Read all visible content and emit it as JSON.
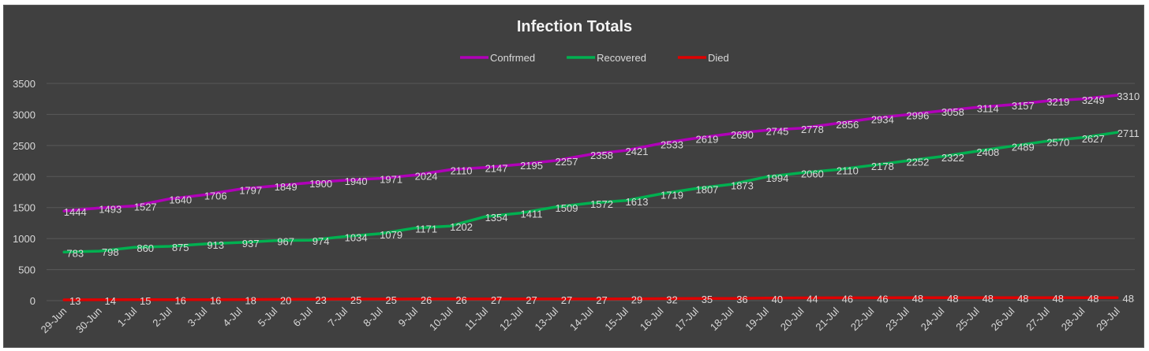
{
  "chart_data": {
    "type": "line",
    "title": "Infection Totals",
    "xlabel": "",
    "ylabel": "",
    "ylim": [
      0,
      3500
    ],
    "yticks": [
      0,
      500,
      1000,
      1500,
      2000,
      2500,
      3000,
      3500
    ],
    "grid": true,
    "legend_position": "top-center",
    "categories": [
      "29-Jun",
      "30-Jun",
      "1-Jul",
      "2-Jul",
      "3-Jul",
      "4-Jul",
      "5-Jul",
      "6-Jul",
      "7-Jul",
      "8-Jul",
      "9-Jul",
      "10-Jul",
      "11-Jul",
      "12-Jul",
      "13-Jul",
      "14-Jul",
      "15-Jul",
      "16-Jul",
      "17-Jul",
      "18-Jul",
      "19-Jul",
      "20-Jul",
      "21-Jul",
      "22-Jul",
      "23-Jul",
      "24-Jul",
      "25-Jul",
      "26-Jul",
      "27-Jul",
      "28-Jul",
      "29-Jul"
    ],
    "series": [
      {
        "name": "Confrmed",
        "color": "#b000b8",
        "values": [
          1444,
          1493,
          1527,
          1640,
          1706,
          1797,
          1849,
          1900,
          1940,
          1971,
          2024,
          2110,
          2147,
          2195,
          2257,
          2358,
          2421,
          2533,
          2619,
          2690,
          2745,
          2778,
          2856,
          2934,
          2996,
          3058,
          3114,
          3157,
          3219,
          3249,
          3310
        ]
      },
      {
        "name": "Recovered",
        "color": "#00b050",
        "values": [
          783,
          798,
          860,
          875,
          913,
          937,
          967,
          974,
          1034,
          1079,
          1171,
          1202,
          1354,
          1411,
          1509,
          1572,
          1613,
          1719,
          1807,
          1873,
          1994,
          2060,
          2110,
          2178,
          2252,
          2322,
          2408,
          2489,
          2570,
          2627,
          2711
        ]
      },
      {
        "name": "Died",
        "color": "#e00000",
        "values": [
          13,
          14,
          15,
          16,
          16,
          18,
          20,
          23,
          25,
          25,
          26,
          26,
          27,
          27,
          27,
          27,
          29,
          32,
          35,
          36,
          40,
          44,
          46,
          46,
          48,
          48,
          48,
          48,
          48,
          48,
          48
        ]
      }
    ],
    "background_color": "#404040",
    "text_color": "#d9d9d9"
  }
}
